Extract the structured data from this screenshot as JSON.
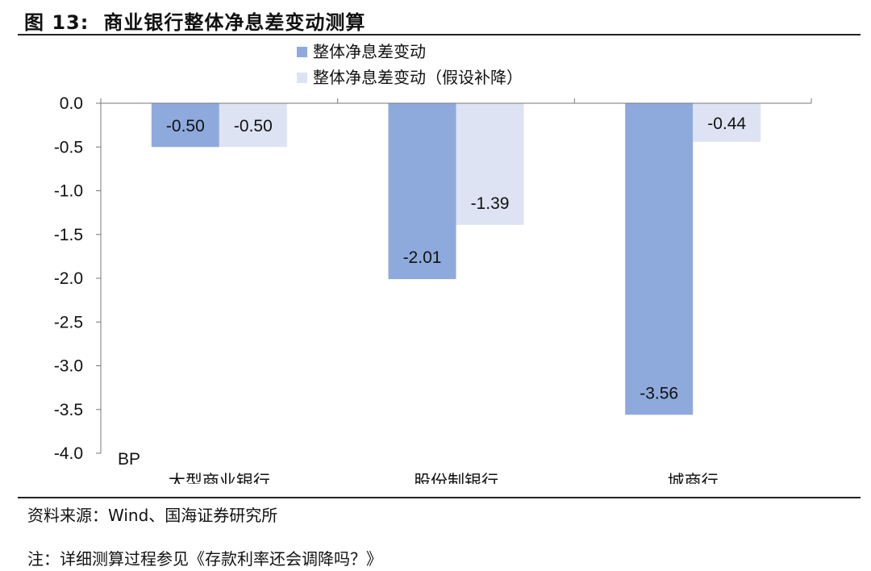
{
  "header": {
    "figure_label": "图 13:",
    "title": "商业银行整体净息差变动测算"
  },
  "chart_data": {
    "type": "bar",
    "title": "",
    "categories": [
      "大型商业银行",
      "股份制银行",
      "城商行"
    ],
    "series": [
      {
        "name": "整体净息差变动",
        "values": [
          -0.5,
          -2.01,
          -3.56
        ],
        "labels": [
          "-0.50",
          "-2.01",
          "-3.56"
        ],
        "color": "#8EAADC"
      },
      {
        "name": "整体净息差变动（假设补降）",
        "values": [
          -0.5,
          -1.39,
          -0.44
        ],
        "labels": [
          "-0.50",
          "-1.39",
          "-0.44"
        ],
        "color": "#DDE3F3"
      }
    ],
    "ylim": [
      -4.0,
      0.0
    ],
    "yticks": [
      "0.0",
      "-0.5",
      "-1.0",
      "-1.5",
      "-2.0",
      "-2.5",
      "-3.0",
      "-3.5",
      "-4.0"
    ],
    "ylabel": "",
    "unit_label": "BP",
    "xlabel": "",
    "legend_position": "top-center",
    "grid": false
  },
  "footer": {
    "source": "资料来源：Wind、国海证券研究所",
    "note": "注：详细测算过程参见《存款利率还会调降吗？》"
  }
}
